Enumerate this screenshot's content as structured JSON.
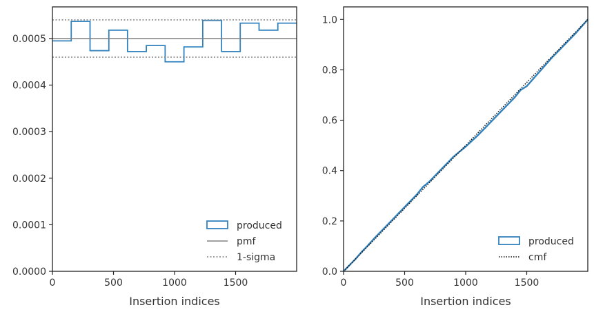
{
  "colors": {
    "produced": "#3182bd",
    "pmf": "#808080",
    "sigma": "#808080",
    "cmf": "#111111",
    "axis": "#222222"
  },
  "chart_data": [
    {
      "type": "line",
      "style": "step-histogram",
      "xlabel": "Insertion indices",
      "ylabel": "",
      "xlim": [
        0,
        2000
      ],
      "ylim": [
        0,
        0.000568
      ],
      "xticks": [
        0,
        500,
        1000,
        1500
      ],
      "xtick_labels": [
        "0",
        "500",
        "1000",
        "1500"
      ],
      "yticks": [
        0,
        0.0001,
        0.0002,
        0.0003,
        0.0004,
        0.0005
      ],
      "ytick_labels": [
        "0.0000",
        "0.0001",
        "0.0002",
        "0.0003",
        "0.0004",
        "0.0005"
      ],
      "grid": false,
      "legend_position": "lower right",
      "series": [
        {
          "name": "produced",
          "kind": "step",
          "bin_edges": [
            0,
            154,
            308,
            462,
            615,
            769,
            923,
            1077,
            1231,
            1385,
            1538,
            1692,
            1846,
            2000
          ],
          "values": [
            0.000495,
            0.000537,
            0.000474,
            0.000518,
            0.000472,
            0.000485,
            0.00045,
            0.000482,
            0.000539,
            0.000472,
            0.000533,
            0.000518,
            0.000533
          ]
        },
        {
          "name": "pmf",
          "kind": "hline",
          "y": 0.0005
        },
        {
          "name": "1-sigma",
          "kind": "hline-pair",
          "y": [
            0.00046,
            0.00054
          ]
        }
      ],
      "legend": [
        "produced",
        "pmf",
        "1-sigma"
      ]
    },
    {
      "type": "line",
      "style": "cumulative",
      "xlabel": "Insertion indices",
      "ylabel": "",
      "xlim": [
        0,
        2000
      ],
      "ylim": [
        0,
        1.05
      ],
      "xticks": [
        0,
        500,
        1000,
        1500
      ],
      "xtick_labels": [
        "0",
        "500",
        "1000",
        "1500"
      ],
      "yticks": [
        0,
        0.2,
        0.4,
        0.6,
        0.8,
        1.0
      ],
      "ytick_labels": [
        "0.0",
        "0.2",
        "0.4",
        "0.6",
        "0.8",
        "1.0"
      ],
      "grid": false,
      "legend_position": "lower right",
      "series": [
        {
          "name": "produced",
          "kind": "line",
          "x": [
            0,
            50,
            100,
            150,
            200,
            250,
            300,
            400,
            500,
            600,
            650,
            700,
            800,
            900,
            1000,
            1100,
            1200,
            1300,
            1350,
            1400,
            1450,
            1500,
            1600,
            1700,
            1800,
            1900,
            2000
          ],
          "y": [
            0,
            0.025,
            0.05,
            0.078,
            0.103,
            0.13,
            0.155,
            0.205,
            0.255,
            0.305,
            0.335,
            0.355,
            0.405,
            0.455,
            0.495,
            0.54,
            0.59,
            0.64,
            0.665,
            0.69,
            0.72,
            0.735,
            0.79,
            0.845,
            0.895,
            0.945,
            1.0
          ]
        },
        {
          "name": "cmf",
          "kind": "diagonal",
          "x": [
            0,
            2000
          ],
          "y": [
            0,
            1.0
          ]
        }
      ],
      "legend": [
        "produced",
        "cmf"
      ]
    }
  ]
}
